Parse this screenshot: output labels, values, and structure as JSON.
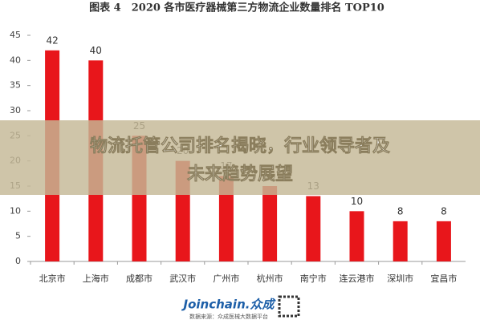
{
  "chart_data": {
    "type": "bar",
    "title": "图表 4　2020 各市医疗器械第三方物流企业数量排名 TOP10",
    "categories": [
      "北京市",
      "上海市",
      "成都市",
      "武汉市",
      "广州市",
      "杭州市",
      "南宁市",
      "连云港市",
      "深圳市",
      "宜昌市"
    ],
    "values": [
      42,
      40,
      25,
      20,
      17,
      15,
      13,
      10,
      8,
      8
    ],
    "color": "#e8161b",
    "ylim": [
      0,
      45
    ],
    "yticks": [
      0,
      5,
      10,
      15,
      20,
      25,
      30,
      35,
      40,
      45
    ]
  },
  "banner": {
    "lines": [
      "物流托管公司排名揭晓，行业领导者及",
      "未来趋势展望"
    ]
  },
  "footer": {
    "brand": "Joinchain.众成",
    "source": "数据来源：众成医械大数据平台"
  }
}
